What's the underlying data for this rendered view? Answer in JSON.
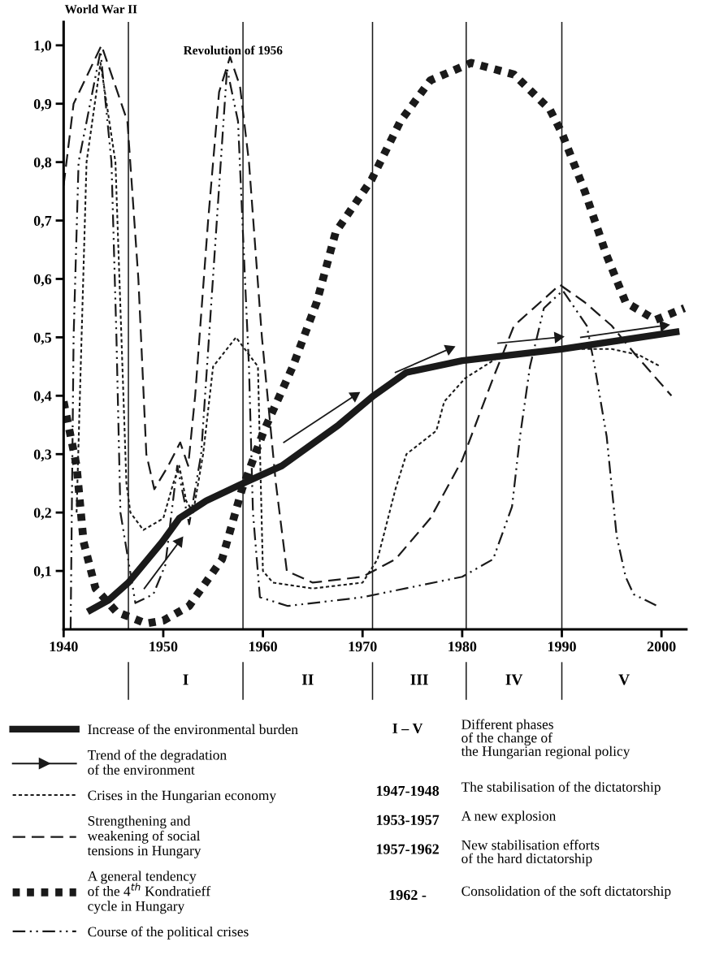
{
  "chart_data": {
    "type": "line",
    "xlim": [
      1940,
      2002.5
    ],
    "xticks": [
      1940,
      1950,
      1960,
      1970,
      1980,
      1990,
      2000
    ],
    "ylim": [
      0,
      1.04
    ],
    "yticks": [
      {
        "value": 0.1,
        "label": "0,1"
      },
      {
        "value": 0.2,
        "label": "0,2"
      },
      {
        "value": 0.3,
        "label": "0,3"
      },
      {
        "value": 0.4,
        "label": "0,4"
      },
      {
        "value": 0.5,
        "label": "0,5"
      },
      {
        "value": 0.6,
        "label": "0,6"
      },
      {
        "value": 0.7,
        "label": "0,7"
      },
      {
        "value": 0.8,
        "label": "0,8"
      },
      {
        "value": 0.9,
        "label": "0,9"
      },
      {
        "value": 1.0,
        "label": "1,0"
      }
    ],
    "grid": false,
    "legend": "bottom left",
    "marker": "none",
    "series": [
      {
        "name": "Increase of the environmental burden",
        "color": "#1a1a1a",
        "line_style": "solid",
        "x": [
          1942.4,
          1944.5,
          1946.5,
          1949.9,
          1951.6,
          1954.3,
          1958,
          1961.9,
          1967.6,
          1971.1,
          1974.4,
          1980,
          1990,
          2001.8
        ],
        "values": [
          0.03,
          0.05,
          0.08,
          0.15,
          0.19,
          0.22,
          0.25,
          0.28,
          0.35,
          0.4,
          0.44,
          0.46,
          0.48,
          0.51
        ]
      },
      {
        "name": "Trend of the degradation\nof the environment",
        "marker": "triangle",
        "color": "#1a1a1a",
        "line_style": "solid",
        "x": [
          1948.1,
          1951.6,
          null,
          1962.1,
          1969.2,
          null,
          1973.3,
          1978.7,
          null,
          1983.6,
          1989.6,
          null,
          1991.9,
          2000.2
        ],
        "values": [
          0.07,
          0.15,
          null,
          0.32,
          0.4,
          null,
          0.44,
          0.48,
          null,
          0.49,
          0.5,
          null,
          0.5,
          0.52
        ]
      },
      {
        "name": "Crises in the Hungarian economy",
        "color": "#1a1a1a",
        "line_style": "dotted",
        "x": [
          1941.3,
          1941.8,
          1942.3,
          1943.7,
          1945.2,
          1945.8,
          1946.3,
          1946.7,
          1948,
          1950,
          1951,
          1951.6,
          1952.3,
          1953,
          1954,
          1955,
          1957.3,
          1959.5,
          1960,
          1961,
          1965,
          1970,
          1971.5,
          1973.3,
          1974.4,
          1977.4,
          1978.2,
          1980.3,
          1984,
          1990,
          1995,
          1997.7,
          1999.9
        ],
        "values": [
          0.2,
          0.5,
          0.8,
          0.97,
          0.8,
          0.5,
          0.25,
          0.2,
          0.17,
          0.19,
          0.25,
          0.28,
          0.22,
          0.2,
          0.3,
          0.45,
          0.5,
          0.45,
          0.1,
          0.08,
          0.07,
          0.08,
          0.12,
          0.24,
          0.3,
          0.34,
          0.39,
          0.43,
          0.47,
          0.48,
          0.48,
          0.47,
          0.45
        ]
      },
      {
        "name": "Strengthening and\nweakening of social\ntensions in Hungary",
        "color": "#1a1a1a",
        "line_style": "dashed",
        "x": [
          1940,
          1941,
          1943.8,
          1946.4,
          1947.5,
          1948.3,
          1949.1,
          1950.5,
          1951.7,
          1952.5,
          1953.2,
          1954.5,
          1955.6,
          1956.7,
          1957.7,
          1958.6,
          1959.9,
          1961.3,
          1962.4,
          1965,
          1970,
          1973.3,
          1976.8,
          1980,
          1983.1,
          1985.2,
          1989.8,
          1992.3,
          1995,
          1997.4,
          2001
        ],
        "values": [
          0.76,
          0.9,
          1.0,
          0.87,
          0.6,
          0.3,
          0.24,
          0.28,
          0.32,
          0.28,
          0.4,
          0.7,
          0.92,
          0.98,
          0.93,
          0.8,
          0.5,
          0.25,
          0.1,
          0.08,
          0.09,
          0.12,
          0.19,
          0.29,
          0.43,
          0.52,
          0.59,
          0.56,
          0.52,
          0.47,
          0.4
        ]
      },
      {
        "name": "A general tendency\nof the 4$^{th}$ Kondratieff\ncycle in Hungary",
        "color": "#1a1a1a",
        "line_style": "square dotted",
        "x": [
          1940,
          1941.3,
          1942,
          1943.2,
          1945.3,
          1948.3,
          1950,
          1952.6,
          1955.9,
          1957.9,
          1960.1,
          1963,
          1965.4,
          1967.3,
          1970.9,
          1973.8,
          1976.8,
          1980.9,
          1985.2,
          1988.8,
          1990,
          1992.3,
          1994.5,
          1996.4,
          1999.4,
          2002.3
        ],
        "values": [
          0.39,
          0.28,
          0.15,
          0.07,
          0.03,
          0.01,
          0.015,
          0.04,
          0.12,
          0.24,
          0.34,
          0.45,
          0.56,
          0.68,
          0.77,
          0.87,
          0.94,
          0.97,
          0.95,
          0.89,
          0.85,
          0.75,
          0.64,
          0.56,
          0.53,
          0.55
        ]
      },
      {
        "name": "Course of the political crises",
        "color": "#1a1a1a",
        "line_style": "dashdotdot",
        "x": [
          1940.7,
          1941,
          1941.5,
          1943.7,
          1944.8,
          1945.3,
          1945.7,
          1947.2,
          1949,
          1950.2,
          1951.4,
          1952.6,
          1953.8,
          1956.4,
          1957.5,
          1958.2,
          1958.6,
          1959,
          1959.7,
          1962.5,
          1970,
          1980,
          1983.1,
          1985,
          1985.8,
          1986.8,
          1988.2,
          1990.1,
          1992.5,
          1993.3,
          1994.5,
          1995.5,
          1996.4,
          1997.2,
          1999.6
        ],
        "values": [
          0.0,
          0.5,
          0.8,
          0.99,
          0.8,
          0.5,
          0.2,
          0.045,
          0.06,
          0.11,
          0.28,
          0.18,
          0.3,
          0.96,
          0.87,
          0.6,
          0.45,
          0.2,
          0.055,
          0.04,
          0.055,
          0.09,
          0.12,
          0.21,
          0.33,
          0.45,
          0.55,
          0.58,
          0.52,
          0.45,
          0.33,
          0.16,
          0.09,
          0.06,
          0.04
        ]
      }
    ],
    "ref_lines": [
      {
        "axis": "x",
        "value": 1946.5,
        "color": "#1a1a1a"
      },
      {
        "axis": "x",
        "value": 1958,
        "color": "#1a1a1a"
      },
      {
        "axis": "x",
        "value": 1971,
        "color": "#1a1a1a"
      },
      {
        "axis": "x",
        "value": 1980.4,
        "color": "#1a1a1a"
      },
      {
        "axis": "x",
        "value": 1990,
        "color": "#1a1a1a"
      }
    ],
    "annotations": [
      "World War II",
      {
        "text": "Revolution of 1956",
        "x": 1957,
        "y": 0.98
      },
      "I",
      "II",
      "III",
      "IV",
      "V",
      "I – V",
      "Different phases\nof the change of\nthe Hungarian regional policy",
      "1947-1948",
      "The stabilisation of the dictatorship",
      "1953-1957",
      "A new explosion",
      "1957-1962",
      "New stabilisation efforts\nof the hard dictatorship",
      "1962 -",
      "Consolidation of the soft dictatorship"
    ]
  }
}
